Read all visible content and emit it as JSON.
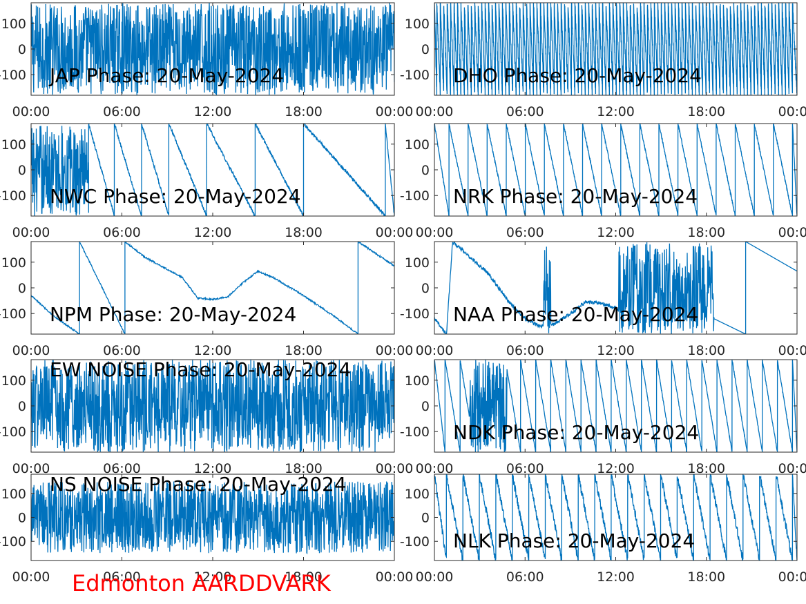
{
  "footer_label": "Edmonton AARDDVARK",
  "colors": {
    "line": "#0072bd",
    "axes": "#262626",
    "footer": "#ff0000"
  },
  "chart_data": [
    {
      "type": "line",
      "title": "JAP Phase: 20-May-2024",
      "x_ticks": [
        "00:00",
        "06:00",
        "12:00",
        "18:00",
        "00:00"
      ],
      "y_ticks": [
        100,
        0,
        -100
      ],
      "y_tick_labels": [
        "100",
        "0",
        "-100"
      ],
      "xlim": [
        0,
        24
      ],
      "ylim": [
        -180,
        180
      ],
      "xlabel": "",
      "ylabel": "",
      "title_position": "bottom-left",
      "phase_profile": {
        "style": "noise",
        "noise_amplitude": 180
      }
    },
    {
      "type": "line",
      "title": "DHO Phase: 20-May-2024",
      "x_ticks": [
        "00:00",
        "06:00",
        "12:00",
        "18:00",
        "00:00"
      ],
      "y_ticks": [
        100,
        0,
        -100
      ],
      "y_tick_labels": [
        "100",
        "0",
        "-100"
      ],
      "xlim": [
        0,
        24
      ],
      "ylim": [
        -180,
        180
      ],
      "xlabel": "",
      "ylabel": "",
      "title_position": "bottom-left",
      "phase_profile": {
        "style": "sawtooth",
        "wraps_per_day": 105,
        "direction": "down",
        "jitter": 20
      }
    },
    {
      "type": "line",
      "title": "NWC Phase: 20-May-2024",
      "x_ticks": [
        "00:00",
        "06:00",
        "12:00",
        "18:00",
        "00:00"
      ],
      "y_ticks": [
        100,
        0,
        -100
      ],
      "y_tick_labels": [
        "100",
        "0",
        "-100"
      ],
      "xlim": [
        0,
        24
      ],
      "ylim": [
        -180,
        180
      ],
      "xlabel": "",
      "ylabel": "",
      "title_position": "bottom-left",
      "phase_profile": {
        "style": "sawtooth",
        "noisy_until": 3.8,
        "wrap_hours": [
          5.5,
          7.3,
          9.1,
          11.6,
          14.8,
          18.0,
          23.4
        ],
        "direction": "down",
        "jitter": 6
      }
    },
    {
      "type": "line",
      "title": "NRK Phase: 20-May-2024",
      "x_ticks": [
        "00:00",
        "06:00",
        "12:00",
        "18:00",
        "00:00"
      ],
      "y_ticks": [
        100,
        0,
        -100
      ],
      "y_tick_labels": [
        "100",
        "0",
        "-100"
      ],
      "xlim": [
        0,
        24
      ],
      "ylim": [
        -180,
        180
      ],
      "xlabel": "",
      "ylabel": "",
      "title_position": "bottom-left",
      "phase_profile": {
        "style": "sawtooth",
        "wraps_per_day": 19,
        "direction": "down",
        "jitter": 5
      }
    },
    {
      "type": "line",
      "title": "NPM Phase: 20-May-2024",
      "x": [
        0,
        1.5,
        3.2,
        3.2,
        6.2,
        6.2,
        7.5,
        10,
        11,
        12,
        13,
        14,
        15,
        15.2,
        16,
        18,
        20,
        21.6,
        21.6,
        24
      ],
      "y": [
        -30,
        -110,
        -180,
        180,
        -180,
        180,
        120,
        40,
        -40,
        -45,
        -35,
        20,
        65,
        60,
        40,
        -30,
        -110,
        -180,
        180,
        85
      ],
      "x_ticks": [
        "00:00",
        "06:00",
        "12:00",
        "18:00",
        "00:00"
      ],
      "y_ticks": [
        100,
        0,
        -100
      ],
      "y_tick_labels": [
        "100",
        "0",
        "-100"
      ],
      "xlim": [
        0,
        24
      ],
      "ylim": [
        -180,
        180
      ],
      "xlabel": "",
      "ylabel": "",
      "title_position": "bottom-left"
    },
    {
      "type": "line",
      "title": "NAA Phase: 20-May-2024",
      "x": [
        0,
        0.8,
        1.2,
        1.2,
        3.5,
        5,
        6,
        7,
        8,
        9,
        10,
        11,
        12,
        12.5
      ],
      "y": [
        -120,
        -180,
        180,
        180,
        60,
        -60,
        -120,
        -150,
        -140,
        -100,
        -55,
        -60,
        -80,
        -100
      ],
      "x_ticks": [
        "00:00",
        "06:00",
        "12:00",
        "18:00",
        "00:00"
      ],
      "y_ticks": [
        100,
        0,
        -100
      ],
      "y_tick_labels": [
        "100",
        "0",
        "-100"
      ],
      "xlim": [
        0,
        24
      ],
      "ylim": [
        -180,
        180
      ],
      "xlabel": "",
      "ylabel": "",
      "title_position": "bottom-left",
      "phase_profile": {
        "style": "mixed",
        "noise_ranges": [
          [
            7.2,
            7.7
          ],
          [
            12.2,
            18.5
          ]
        ],
        "tail": {
          "x": [
            18.5,
            20.6,
            20.6,
            24
          ],
          "y": [
            -120,
            -180,
            180,
            65
          ]
        }
      }
    },
    {
      "type": "line",
      "title": "EW NOISE Phase: 20-May-2024",
      "x_ticks": [
        "00:00",
        "06:00",
        "12:00",
        "18:00",
        "00:00"
      ],
      "y_ticks": [
        100,
        0,
        -100
      ],
      "y_tick_labels": [
        "100",
        "0",
        "-100"
      ],
      "xlim": [
        0,
        24
      ],
      "ylim": [
        -180,
        180
      ],
      "xlabel": "",
      "ylabel": "",
      "title_position": "top-left",
      "phase_profile": {
        "style": "noise",
        "noise_amplitude": 180
      }
    },
    {
      "type": "line",
      "title": "NDK Phase: 20-May-2024",
      "x_ticks": [
        "00:00",
        "06:00",
        "12:00",
        "18:00",
        "00:00"
      ],
      "y_ticks": [
        100,
        0,
        -100
      ],
      "y_tick_labels": [
        "100",
        "0",
        "-100"
      ],
      "xlim": [
        0,
        24
      ],
      "ylim": [
        -180,
        180
      ],
      "xlabel": "",
      "ylabel": "",
      "title_position": "bottom-left",
      "phase_profile": {
        "style": "sawtooth",
        "noise_ranges": [
          [
            2.3,
            4.8
          ]
        ],
        "wraps_per_day": 24,
        "direction": "down",
        "jitter": 4
      }
    },
    {
      "type": "line",
      "title": "NS NOISE Phase: 20-May-2024",
      "x_ticks": [
        "00:00",
        "06:00",
        "12:00",
        "18:00",
        "00:00"
      ],
      "y_ticks": [
        100,
        0,
        -100
      ],
      "y_tick_labels": [
        "100",
        "0",
        "-100"
      ],
      "xlim": [
        0,
        24
      ],
      "ylim": [
        -180,
        180
      ],
      "xlabel": "",
      "ylabel": "",
      "title_position": "top-left",
      "phase_profile": {
        "style": "noise",
        "noise_amplitude": 150
      }
    },
    {
      "type": "line",
      "title": "NLK Phase: 20-May-2024",
      "x_ticks": [
        "00:00",
        "06:00",
        "12:00",
        "18:00",
        "00:00"
      ],
      "y_ticks": [
        100,
        0,
        -100
      ],
      "y_tick_labels": [
        "100",
        "0",
        "-100"
      ],
      "xlim": [
        0,
        24
      ],
      "ylim": [
        -180,
        180
      ],
      "xlabel": "",
      "ylabel": "",
      "title_position": "bottom-left",
      "phase_profile": {
        "style": "sawtooth",
        "wraps_per_day": 22,
        "direction": "down",
        "jitter": 18
      }
    }
  ]
}
